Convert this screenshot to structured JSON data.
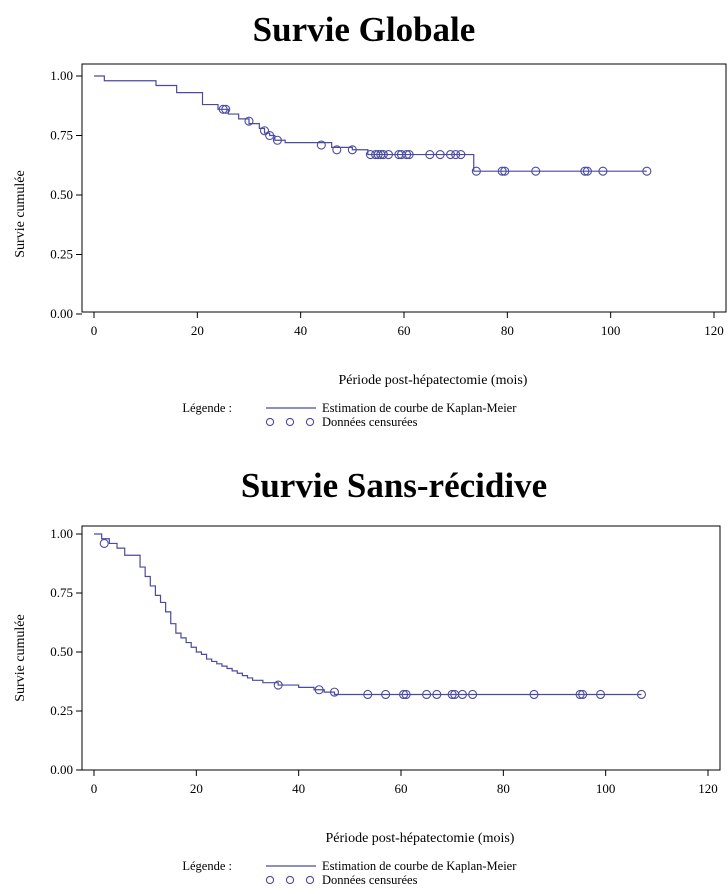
{
  "chart_data": [
    {
      "type": "line",
      "title": "Survie Globale",
      "xlabel": "Période  post-hépatectomie (mois)",
      "ylabel": "Survie cumulée",
      "xlim": [
        0,
        120
      ],
      "ylim": [
        0,
        1
      ],
      "xticks": [
        "0",
        "20",
        "40",
        "60",
        "80",
        "100",
        "120"
      ],
      "yticks": [
        "0.00",
        "0.25",
        "0.50",
        "0.75",
        "1.00"
      ],
      "grid": false,
      "legend_position": "bottom",
      "legend_title": "Légende :",
      "legend": [
        "Estimation de courbe de Kaplan-Meier",
        "Données censurées"
      ],
      "color": "#4a4aa0",
      "series": [
        {
          "name": "Estimation de courbe de Kaplan-Meier",
          "x": [
            0,
            2,
            9,
            12,
            16,
            21,
            24,
            26,
            28,
            30,
            32,
            33,
            34,
            35,
            37,
            46,
            50,
            53,
            73.5,
            107
          ],
          "y": [
            1.0,
            0.98,
            0.98,
            0.96,
            0.93,
            0.88,
            0.86,
            0.84,
            0.82,
            0.8,
            0.78,
            0.76,
            0.75,
            0.73,
            0.72,
            0.7,
            0.69,
            0.67,
            0.6,
            0.6
          ]
        },
        {
          "name": "Données censurées",
          "x": [
            25,
            25.5,
            30,
            33,
            34,
            35.5,
            44,
            47,
            50,
            53.5,
            54.5,
            55,
            55.5,
            56,
            57,
            59,
            59.5,
            60.5,
            61,
            65,
            67,
            69,
            70,
            71,
            74,
            79,
            79.5,
            85.5,
            95,
            95.5,
            98.5,
            107
          ],
          "y": [
            0.86,
            0.86,
            0.81,
            0.77,
            0.75,
            0.73,
            0.71,
            0.69,
            0.69,
            0.67,
            0.67,
            0.67,
            0.67,
            0.67,
            0.67,
            0.67,
            0.67,
            0.67,
            0.67,
            0.67,
            0.67,
            0.67,
            0.67,
            0.67,
            0.6,
            0.6,
            0.6,
            0.6,
            0.6,
            0.6,
            0.6,
            0.6
          ]
        }
      ]
    },
    {
      "type": "line",
      "title": "Survie Sans-récidive",
      "xlabel": "Période post-hépatectomie (mois)",
      "ylabel": "Survie cumulée",
      "xlim": [
        0,
        120
      ],
      "ylim": [
        0,
        1
      ],
      "xticks": [
        "0",
        "20",
        "40",
        "60",
        "80",
        "100",
        "120"
      ],
      "yticks": [
        "0.00",
        "0.25",
        "0.50",
        "0.75",
        "1.00"
      ],
      "grid": false,
      "legend_position": "bottom",
      "legend_title": "Légende :",
      "legend": [
        "Estimation de courbe de Kaplan-Meier",
        "Données censurées"
      ],
      "color": "#4a4aa0",
      "series": [
        {
          "name": "Estimation de courbe de Kaplan-Meier",
          "x": [
            0,
            1.5,
            3,
            4.5,
            6,
            9,
            10,
            11,
            12,
            13,
            14,
            15,
            16,
            17,
            18,
            19,
            20,
            21,
            22,
            23,
            24,
            25,
            26,
            27,
            28,
            29,
            30,
            31,
            32,
            33,
            34,
            36,
            40,
            43,
            45,
            47,
            107
          ],
          "y": [
            1.0,
            0.98,
            0.96,
            0.94,
            0.91,
            0.86,
            0.82,
            0.78,
            0.74,
            0.71,
            0.67,
            0.62,
            0.58,
            0.56,
            0.54,
            0.52,
            0.5,
            0.49,
            0.47,
            0.46,
            0.45,
            0.44,
            0.43,
            0.42,
            0.41,
            0.4,
            0.39,
            0.38,
            0.38,
            0.37,
            0.37,
            0.36,
            0.35,
            0.34,
            0.33,
            0.32,
            0.32
          ]
        },
        {
          "name": "Données censurées",
          "x": [
            2,
            36,
            44,
            47,
            53.5,
            57,
            60.5,
            61,
            65,
            67,
            70,
            70.5,
            72,
            74,
            86,
            95,
            95.5,
            99,
            107
          ],
          "y": [
            0.96,
            0.36,
            0.34,
            0.33,
            0.32,
            0.32,
            0.32,
            0.32,
            0.32,
            0.32,
            0.32,
            0.32,
            0.32,
            0.32,
            0.32,
            0.32,
            0.32,
            0.32,
            0.32
          ]
        }
      ]
    }
  ]
}
